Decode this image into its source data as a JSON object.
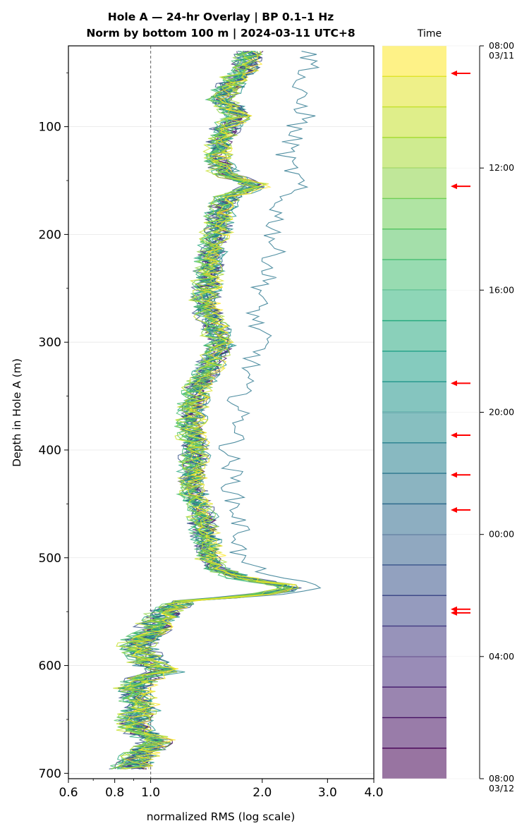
{
  "chart_data": {
    "type": "line",
    "title_line1": "Hole A — 24-hr Overlay  |  BP 0.1–1 Hz",
    "title_line2": "Norm by bottom 100 m  |  2024-03-11 UTC+8",
    "xlabel": "normalized RMS  (log scale)",
    "ylabel": "Depth in Hole A (m)",
    "xscale": "log",
    "xlim": [
      0.6,
      4.0
    ],
    "xticks": [
      {
        "v": 0.6,
        "label": "0.6"
      },
      {
        "v": 0.8,
        "label": "0.8"
      },
      {
        "v": 1.0,
        "label": "1.0"
      },
      {
        "v": 2.0,
        "label": "2.0"
      },
      {
        "v": 3.0,
        "label": "3.0"
      },
      {
        "v": 4.0,
        "label": "4.0"
      }
    ],
    "ylim": [
      705,
      25
    ],
    "yticks": [
      100,
      200,
      300,
      400,
      500,
      600,
      700
    ],
    "reference_line_x": 1.0,
    "grid": "horizontal",
    "colormap": "viridis",
    "n_series": 24,
    "highlighted_series_index": 8,
    "reference_profile": {
      "depth": [
        30,
        45,
        60,
        75,
        90,
        100,
        115,
        130,
        145,
        155,
        165,
        180,
        200,
        220,
        240,
        260,
        280,
        300,
        320,
        340,
        360,
        380,
        400,
        420,
        440,
        460,
        480,
        500,
        510,
        520,
        527,
        532,
        537,
        540,
        545,
        550,
        560,
        570,
        580,
        590,
        600,
        605,
        610,
        620,
        630,
        640,
        650,
        660,
        670,
        680,
        690,
        697
      ],
      "rms": [
        1.85,
        1.8,
        1.65,
        1.55,
        1.72,
        1.6,
        1.55,
        1.5,
        1.6,
        1.95,
        1.6,
        1.55,
        1.5,
        1.45,
        1.43,
        1.4,
        1.45,
        1.55,
        1.45,
        1.35,
        1.3,
        1.28,
        1.32,
        1.3,
        1.3,
        1.38,
        1.4,
        1.45,
        1.5,
        1.8,
        2.4,
        2.2,
        1.6,
        1.25,
        1.15,
        1.08,
        1.05,
        1.0,
        0.92,
        0.95,
        1.0,
        1.12,
        0.98,
        0.9,
        0.92,
        0.95,
        0.9,
        0.92,
        1.05,
        0.95,
        0.9,
        0.88
      ]
    },
    "outlier_series": {
      "index": 9,
      "depth": [
        30,
        45,
        60,
        75,
        90,
        100,
        115,
        130,
        145,
        155,
        165,
        180,
        200,
        220,
        240,
        260,
        280,
        300,
        320,
        340,
        360,
        380,
        400,
        420,
        440,
        460,
        480,
        500,
        510,
        520,
        527,
        532,
        537,
        540,
        545,
        550
      ],
      "rms": [
        2.7,
        2.8,
        2.5,
        2.55,
        2.7,
        2.5,
        2.45,
        2.35,
        2.5,
        2.55,
        2.3,
        2.25,
        2.2,
        2.2,
        2.1,
        2.0,
        1.95,
        2.05,
        1.9,
        1.8,
        1.75,
        1.8,
        1.65,
        1.7,
        1.7,
        1.75,
        1.8,
        1.75,
        1.95,
        2.4,
        2.8,
        2.6,
        1.8,
        1.3,
        1.15,
        1.1
      ]
    },
    "colorbar": {
      "title": "Time",
      "start": "08:00 03/11",
      "end": "08:00 03/12",
      "n_bands": 24,
      "ticks": [
        {
          "frac": 0.0,
          "label": "08:00",
          "sub": "03/11"
        },
        {
          "frac": 0.1667,
          "label": "12:00",
          "sub": ""
        },
        {
          "frac": 0.3333,
          "label": "16:00",
          "sub": ""
        },
        {
          "frac": 0.5,
          "label": "20:00",
          "sub": ""
        },
        {
          "frac": 0.6667,
          "label": "00:00",
          "sub": ""
        },
        {
          "frac": 0.8333,
          "label": "04:00",
          "sub": ""
        },
        {
          "frac": 1.0,
          "label": "08:00",
          "sub": "03/12"
        }
      ],
      "arrow_color": "#ff0000",
      "arrow_hours_after_start": [
        0.9,
        4.6,
        11.05,
        12.75,
        14.05,
        15.2,
        18.45,
        18.57
      ]
    }
  }
}
